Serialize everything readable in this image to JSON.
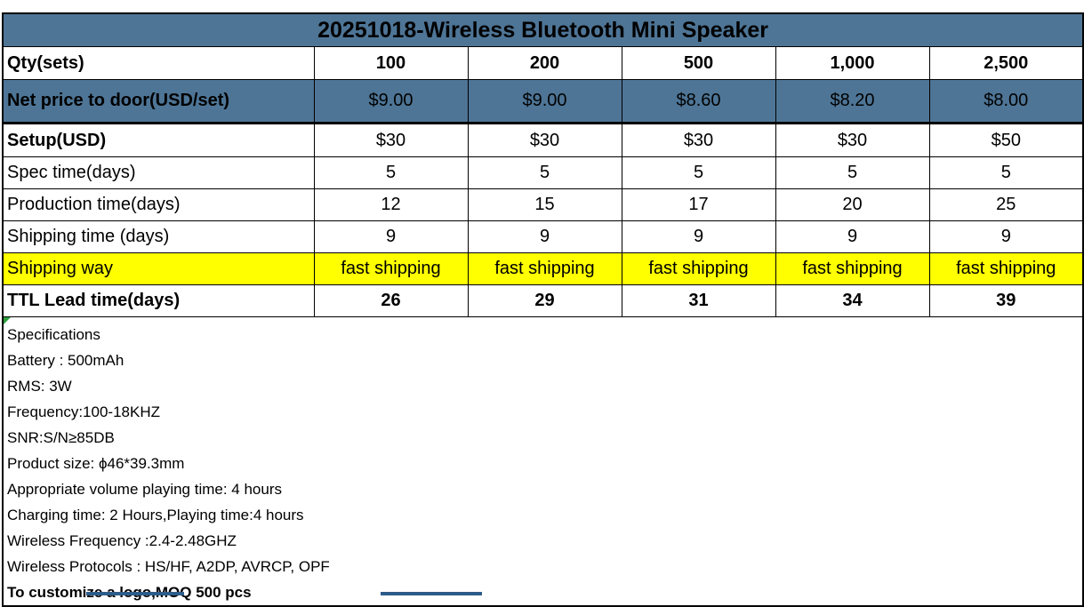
{
  "title": "20251018-Wireless Bluetooth Mini Speaker",
  "colors": {
    "header_fill": "#4e7596",
    "highlight_fill": "#ffff00",
    "border": "#000000",
    "indicator_green": "#2e9e3c",
    "cutoff_fragment_blue": "#2e5c8a"
  },
  "quote_table": {
    "rows": [
      {
        "label": "Qty(sets)",
        "values": [
          "100",
          "200",
          "500",
          "1,000",
          "2,500"
        ]
      },
      {
        "label": "Net price to door(USD/set)",
        "values": [
          "$9.00",
          "$9.00",
          "$8.60",
          "$8.20",
          "$8.00"
        ]
      },
      {
        "label": "Setup(USD)",
        "values": [
          "$30",
          "$30",
          "$30",
          "$30",
          "$50"
        ]
      },
      {
        "label": "Spec time(days)",
        "values": [
          "5",
          "5",
          "5",
          "5",
          "5"
        ]
      },
      {
        "label": "Production time(days)",
        "values": [
          "12",
          "15",
          "17",
          "20",
          "25"
        ]
      },
      {
        "label": "Shipping time (days)",
        "values": [
          "9",
          "9",
          "9",
          "9",
          "9"
        ]
      },
      {
        "label": "Shipping way",
        "values": [
          "fast shipping",
          "fast shipping",
          "fast shipping",
          "fast shipping",
          "fast shipping"
        ]
      },
      {
        "label": "TTL Lead time(days)",
        "values": [
          "26",
          "29",
          "31",
          "34",
          "39"
        ]
      }
    ]
  },
  "specs": {
    "lines": [
      "Specifications",
      "Battery : 500mAh",
      "RMS: 3W",
      "Frequency:100-18KHZ",
      "SNR:S/N≥85DB",
      "Product size: ϕ46*39.3mm",
      "Appropriate volume playing time: 4 hours",
      "Charging time: 2 Hours,Playing time:4 hours",
      "Wireless Frequency :2.4-2.48GHZ",
      "Wireless Protocols : HS/HF, A2DP, AVRCP, OPF",
      "To customize a logo,MOQ 500 pcs"
    ]
  }
}
